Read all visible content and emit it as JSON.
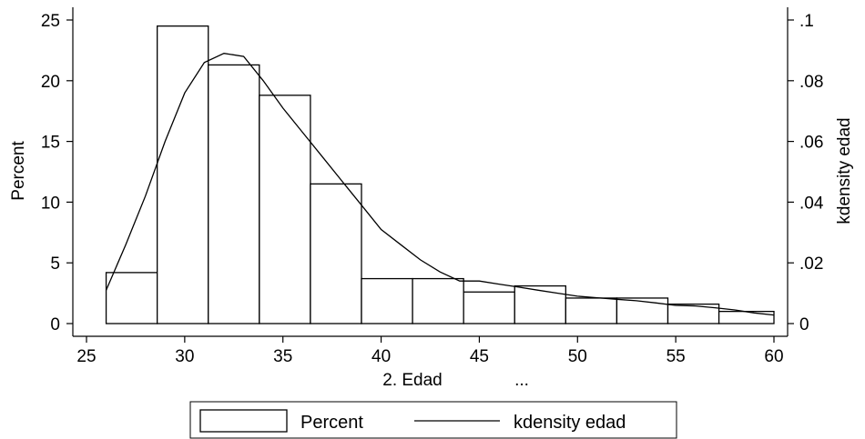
{
  "chart_data": {
    "type": "bar",
    "x_axis": {
      "label": "2. Edad",
      "extra_label": "...",
      "ticks": [
        25,
        30,
        35,
        40,
        45,
        50,
        55,
        60
      ],
      "range": [
        25,
        60
      ]
    },
    "y_axis_left": {
      "label": "Percent",
      "ticks": [
        0,
        5,
        10,
        15,
        20,
        25
      ],
      "range": [
        0,
        25
      ]
    },
    "y_axis_right": {
      "label": "kdensity edad",
      "ticks": [
        0,
        0.02,
        0.04,
        0.06,
        0.08,
        0.1
      ],
      "tick_labels": [
        "0",
        ".02",
        ".04",
        ".06",
        ".08",
        ".1"
      ],
      "range": [
        0,
        0.1
      ]
    },
    "histogram": {
      "name": "Percent",
      "bins": [
        {
          "x0": 26.0,
          "x1": 28.6,
          "value": 4.2
        },
        {
          "x0": 28.6,
          "x1": 31.2,
          "value": 24.5
        },
        {
          "x0": 31.2,
          "x1": 33.8,
          "value": 21.3
        },
        {
          "x0": 33.8,
          "x1": 36.4,
          "value": 18.8
        },
        {
          "x0": 36.4,
          "x1": 39.0,
          "value": 11.5
        },
        {
          "x0": 39.0,
          "x1": 41.6,
          "value": 3.7
        },
        {
          "x0": 41.6,
          "x1": 44.2,
          "value": 3.7
        },
        {
          "x0": 44.2,
          "x1": 46.8,
          "value": 2.6
        },
        {
          "x0": 46.8,
          "x1": 49.4,
          "value": 3.1
        },
        {
          "x0": 49.4,
          "x1": 52.0,
          "value": 2.1
        },
        {
          "x0": 52.0,
          "x1": 54.6,
          "value": 2.1
        },
        {
          "x0": 54.6,
          "x1": 57.2,
          "value": 1.6
        },
        {
          "x0": 57.2,
          "x1": 60.0,
          "value": 1.0
        }
      ]
    },
    "kdensity": {
      "name": "kdensity edad",
      "x": [
        26,
        27,
        28,
        29,
        30,
        31,
        32,
        33,
        34,
        35,
        36,
        37,
        38,
        39,
        40,
        41,
        42,
        43,
        44,
        45,
        46,
        47,
        48,
        49,
        50,
        51,
        52,
        53,
        54,
        55,
        56,
        57,
        58,
        59,
        60
      ],
      "y": [
        0.011,
        0.026,
        0.042,
        0.06,
        0.076,
        0.086,
        0.089,
        0.088,
        0.08,
        0.071,
        0.063,
        0.055,
        0.047,
        0.039,
        0.031,
        0.026,
        0.021,
        0.017,
        0.014,
        0.014,
        0.013,
        0.012,
        0.011,
        0.01,
        0.009,
        0.0085,
        0.008,
        0.0075,
        0.0068,
        0.006,
        0.0058,
        0.0052,
        0.0045,
        0.0035,
        0.0028
      ]
    },
    "legend": {
      "position": "bottom",
      "entries": [
        "Percent",
        "kdensity edad"
      ]
    },
    "grid": false
  }
}
